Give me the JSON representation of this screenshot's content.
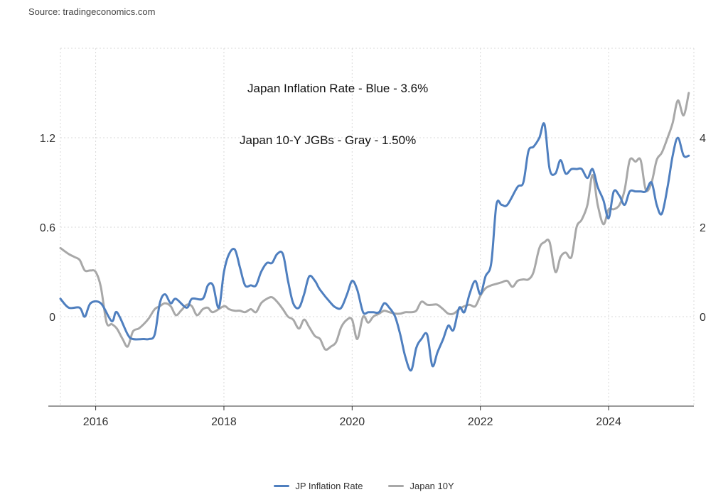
{
  "source": "Source: tradingeconomics.com",
  "annotations": {
    "line1": "Japan Inflation Rate - Blue - 3.6%",
    "line2": "Japan 10-Y JGBs - Gray - 1.50%"
  },
  "colors": {
    "blue": "#4f7fbf",
    "gray": "#a8a8a8",
    "grid": "#d9d9d9"
  },
  "chart_data": {
    "type": "line",
    "x_ticks": [
      "2016",
      "2018",
      "2020",
      "2022",
      "2024"
    ],
    "y_left_ticks": [
      "0",
      "0.6",
      "1.2"
    ],
    "y_right_ticks": [
      "0",
      "2",
      "4"
    ],
    "xlim": [
      2015.45,
      2025.33
    ],
    "ylim_left": [
      -0.6,
      1.8
    ],
    "ylim_right": [
      -2,
      6
    ],
    "grid": true,
    "legend_position": "bottom",
    "series": [
      {
        "name": "JP Inflation Rate",
        "axis": "right",
        "color": "#4f7fbf",
        "points": [
          [
            2015.45,
            0.4
          ],
          [
            2015.58,
            0.2
          ],
          [
            2015.75,
            0.2
          ],
          [
            2015.83,
            0.0
          ],
          [
            2015.92,
            0.3
          ],
          [
            2016.08,
            0.3
          ],
          [
            2016.25,
            -0.1
          ],
          [
            2016.33,
            0.1
          ],
          [
            2016.5,
            -0.4
          ],
          [
            2016.58,
            -0.5
          ],
          [
            2016.75,
            -0.5
          ],
          [
            2016.83,
            -0.5
          ],
          [
            2016.92,
            -0.4
          ],
          [
            2017.0,
            0.3
          ],
          [
            2017.08,
            0.5
          ],
          [
            2017.17,
            0.3
          ],
          [
            2017.25,
            0.4
          ],
          [
            2017.42,
            0.2
          ],
          [
            2017.5,
            0.4
          ],
          [
            2017.67,
            0.4
          ],
          [
            2017.75,
            0.7
          ],
          [
            2017.83,
            0.7
          ],
          [
            2017.92,
            0.2
          ],
          [
            2018.0,
            1.0
          ],
          [
            2018.08,
            1.4
          ],
          [
            2018.17,
            1.5
          ],
          [
            2018.25,
            1.1
          ],
          [
            2018.33,
            0.7
          ],
          [
            2018.42,
            0.7
          ],
          [
            2018.5,
            0.7
          ],
          [
            2018.58,
            1.0
          ],
          [
            2018.67,
            1.2
          ],
          [
            2018.75,
            1.2
          ],
          [
            2018.83,
            1.4
          ],
          [
            2018.92,
            1.4
          ],
          [
            2019.0,
            0.8
          ],
          [
            2019.08,
            0.3
          ],
          [
            2019.17,
            0.2
          ],
          [
            2019.25,
            0.5
          ],
          [
            2019.33,
            0.9
          ],
          [
            2019.42,
            0.8
          ],
          [
            2019.5,
            0.6
          ],
          [
            2019.67,
            0.3
          ],
          [
            2019.75,
            0.2
          ],
          [
            2019.83,
            0.2
          ],
          [
            2019.92,
            0.5
          ],
          [
            2020.0,
            0.8
          ],
          [
            2020.08,
            0.6
          ],
          [
            2020.17,
            0.1
          ],
          [
            2020.25,
            0.1
          ],
          [
            2020.33,
            0.1
          ],
          [
            2020.42,
            0.1
          ],
          [
            2020.5,
            0.3
          ],
          [
            2020.58,
            0.2
          ],
          [
            2020.67,
            0.0
          ],
          [
            2020.75,
            -0.4
          ],
          [
            2020.83,
            -0.9
          ],
          [
            2020.92,
            -1.2
          ],
          [
            2021.0,
            -0.7
          ],
          [
            2021.08,
            -0.5
          ],
          [
            2021.17,
            -0.4
          ],
          [
            2021.25,
            -1.1
          ],
          [
            2021.33,
            -0.8
          ],
          [
            2021.42,
            -0.5
          ],
          [
            2021.5,
            -0.2
          ],
          [
            2021.58,
            -0.3
          ],
          [
            2021.67,
            0.2
          ],
          [
            2021.75,
            0.1
          ],
          [
            2021.83,
            0.5
          ],
          [
            2021.92,
            0.8
          ],
          [
            2022.0,
            0.5
          ],
          [
            2022.08,
            0.9
          ],
          [
            2022.17,
            1.2
          ],
          [
            2022.25,
            2.5
          ],
          [
            2022.33,
            2.5
          ],
          [
            2022.42,
            2.5
          ],
          [
            2022.58,
            2.9
          ],
          [
            2022.67,
            3.0
          ],
          [
            2022.75,
            3.7
          ],
          [
            2022.83,
            3.8
          ],
          [
            2022.92,
            4.0
          ],
          [
            2023.0,
            4.3
          ],
          [
            2023.08,
            3.3
          ],
          [
            2023.17,
            3.2
          ],
          [
            2023.25,
            3.5
          ],
          [
            2023.33,
            3.2
          ],
          [
            2023.42,
            3.3
          ],
          [
            2023.5,
            3.3
          ],
          [
            2023.58,
            3.3
          ],
          [
            2023.67,
            3.1
          ],
          [
            2023.75,
            3.3
          ],
          [
            2023.83,
            2.9
          ],
          [
            2023.92,
            2.6
          ],
          [
            2024.0,
            2.2
          ],
          [
            2024.08,
            2.8
          ],
          [
            2024.17,
            2.7
          ],
          [
            2024.25,
            2.5
          ],
          [
            2024.33,
            2.8
          ],
          [
            2024.42,
            2.8
          ],
          [
            2024.5,
            2.8
          ],
          [
            2024.58,
            2.8
          ],
          [
            2024.67,
            3.0
          ],
          [
            2024.75,
            2.5
          ],
          [
            2024.83,
            2.3
          ],
          [
            2024.92,
            2.9
          ],
          [
            2025.0,
            3.6
          ],
          [
            2025.08,
            4.0
          ],
          [
            2025.17,
            3.6
          ],
          [
            2025.25,
            3.6
          ]
        ]
      },
      {
        "name": "Japan 10Y",
        "axis": "left",
        "color": "#a8a8a8",
        "points": [
          [
            2015.45,
            0.46
          ],
          [
            2015.58,
            0.42
          ],
          [
            2015.67,
            0.4
          ],
          [
            2015.75,
            0.38
          ],
          [
            2015.83,
            0.31
          ],
          [
            2015.92,
            0.31
          ],
          [
            2016.0,
            0.3
          ],
          [
            2016.08,
            0.2
          ],
          [
            2016.17,
            -0.04
          ],
          [
            2016.25,
            -0.05
          ],
          [
            2016.33,
            -0.08
          ],
          [
            2016.42,
            -0.15
          ],
          [
            2016.5,
            -0.2
          ],
          [
            2016.58,
            -0.1
          ],
          [
            2016.67,
            -0.08
          ],
          [
            2016.75,
            -0.05
          ],
          [
            2016.83,
            -0.01
          ],
          [
            2016.92,
            0.05
          ],
          [
            2017.0,
            0.07
          ],
          [
            2017.08,
            0.09
          ],
          [
            2017.17,
            0.07
          ],
          [
            2017.25,
            0.01
          ],
          [
            2017.33,
            0.04
          ],
          [
            2017.42,
            0.08
          ],
          [
            2017.5,
            0.07
          ],
          [
            2017.58,
            0.01
          ],
          [
            2017.67,
            0.05
          ],
          [
            2017.75,
            0.06
          ],
          [
            2017.83,
            0.03
          ],
          [
            2018.0,
            0.07
          ],
          [
            2018.08,
            0.05
          ],
          [
            2018.17,
            0.04
          ],
          [
            2018.25,
            0.04
          ],
          [
            2018.33,
            0.03
          ],
          [
            2018.42,
            0.05
          ],
          [
            2018.5,
            0.03
          ],
          [
            2018.58,
            0.09
          ],
          [
            2018.67,
            0.12
          ],
          [
            2018.75,
            0.13
          ],
          [
            2018.83,
            0.1
          ],
          [
            2018.92,
            0.05
          ],
          [
            2019.0,
            0.0
          ],
          [
            2019.08,
            -0.02
          ],
          [
            2019.17,
            -0.08
          ],
          [
            2019.25,
            -0.02
          ],
          [
            2019.33,
            -0.07
          ],
          [
            2019.42,
            -0.13
          ],
          [
            2019.5,
            -0.15
          ],
          [
            2019.58,
            -0.22
          ],
          [
            2019.67,
            -0.2
          ],
          [
            2019.75,
            -0.17
          ],
          [
            2019.83,
            -0.07
          ],
          [
            2019.92,
            -0.02
          ],
          [
            2020.0,
            -0.02
          ],
          [
            2020.08,
            -0.15
          ],
          [
            2020.17,
            0.0
          ],
          [
            2020.25,
            -0.04
          ],
          [
            2020.33,
            0.0
          ],
          [
            2020.42,
            0.02
          ],
          [
            2020.5,
            0.04
          ],
          [
            2020.58,
            0.03
          ],
          [
            2020.67,
            0.02
          ],
          [
            2020.75,
            0.02
          ],
          [
            2020.83,
            0.03
          ],
          [
            2020.92,
            0.03
          ],
          [
            2021.0,
            0.04
          ],
          [
            2021.08,
            0.1
          ],
          [
            2021.17,
            0.08
          ],
          [
            2021.25,
            0.08
          ],
          [
            2021.33,
            0.08
          ],
          [
            2021.42,
            0.05
          ],
          [
            2021.5,
            0.02
          ],
          [
            2021.58,
            0.02
          ],
          [
            2021.67,
            0.05
          ],
          [
            2021.75,
            0.07
          ],
          [
            2021.83,
            0.08
          ],
          [
            2021.92,
            0.07
          ],
          [
            2022.0,
            0.14
          ],
          [
            2022.08,
            0.19
          ],
          [
            2022.17,
            0.21
          ],
          [
            2022.25,
            0.22
          ],
          [
            2022.33,
            0.23
          ],
          [
            2022.42,
            0.24
          ],
          [
            2022.5,
            0.2
          ],
          [
            2022.58,
            0.24
          ],
          [
            2022.67,
            0.25
          ],
          [
            2022.75,
            0.25
          ],
          [
            2022.83,
            0.3
          ],
          [
            2022.92,
            0.46
          ],
          [
            2023.0,
            0.5
          ],
          [
            2023.08,
            0.5
          ],
          [
            2023.17,
            0.3
          ],
          [
            2023.25,
            0.4
          ],
          [
            2023.33,
            0.43
          ],
          [
            2023.42,
            0.4
          ],
          [
            2023.5,
            0.6
          ],
          [
            2023.58,
            0.65
          ],
          [
            2023.67,
            0.75
          ],
          [
            2023.75,
            0.95
          ],
          [
            2023.83,
            0.75
          ],
          [
            2023.92,
            0.62
          ],
          [
            2024.0,
            0.72
          ],
          [
            2024.08,
            0.72
          ],
          [
            2024.17,
            0.75
          ],
          [
            2024.25,
            0.85
          ],
          [
            2024.33,
            1.05
          ],
          [
            2024.42,
            1.04
          ],
          [
            2024.5,
            1.05
          ],
          [
            2024.58,
            0.85
          ],
          [
            2024.67,
            0.9
          ],
          [
            2024.75,
            1.05
          ],
          [
            2024.83,
            1.1
          ],
          [
            2024.92,
            1.2
          ],
          [
            2025.0,
            1.3
          ],
          [
            2025.08,
            1.45
          ],
          [
            2025.17,
            1.35
          ],
          [
            2025.25,
            1.5
          ]
        ]
      }
    ]
  }
}
